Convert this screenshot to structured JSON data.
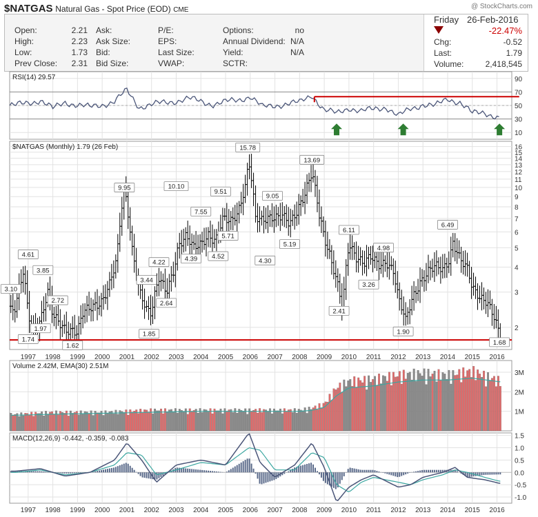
{
  "header": {
    "symbol": "$NATGAS",
    "name": "Natural Gas - Spot Price (EOD)",
    "exchange": "CME",
    "watermark": "@ StockCharts.com"
  },
  "quote": {
    "labels1": [
      "Open:",
      "High:",
      "Low:",
      "Prev Close:"
    ],
    "values1": [
      "2.21",
      "2.23",
      "1.73",
      "2.31"
    ],
    "labels2": [
      "Ask:",
      "Ask Size:",
      "Bid:",
      "Bid Size:"
    ],
    "labels3": [
      "P/E:",
      "EPS:",
      "Last Size:",
      "VWAP:"
    ],
    "labels4": [
      "Options:",
      "Annual Dividend:",
      "Yield:",
      "SCTR:"
    ],
    "values4": [
      "no",
      "N/A",
      "N/A",
      ""
    ],
    "day": "Friday",
    "date": "26-Feb-2016",
    "pct_change": "-22.47%",
    "labels5": [
      "Chg:",
      "Last:",
      "Volume:"
    ],
    "values5": [
      "-0.52",
      "1.79",
      "2,418,545"
    ]
  },
  "colors": {
    "price_line": "#000000",
    "indicator_line": "#4a5578",
    "support_line": "#cc0000",
    "arrow": "#2e7d32",
    "vol_up": "#8a8a8a",
    "vol_down": "#e06b6b",
    "ema": "#3aa6a0",
    "down_triangle": "#8b0000",
    "pct_down": "#cc0000"
  },
  "chart_data": [
    {
      "type": "line",
      "panel": "RSI",
      "title": "RSI(14) 29.57",
      "y_ticks": [
        10,
        30,
        50,
        70,
        90
      ],
      "ylim": [
        0,
        100
      ],
      "overbought": 70,
      "oversold": 30,
      "x_years": [
        1996.5,
        1997.5,
        1998.0,
        1998.5,
        1999.5,
        2000.5,
        2001.0,
        2001.5,
        2002.5,
        2003.5,
        2004.5,
        2005.5,
        2006.0,
        2006.5,
        2007.5,
        2008.0,
        2008.5,
        2009.0,
        2009.5,
        2010.0,
        2010.5,
        2011.5,
        2012.0,
        2012.5,
        2013.0,
        2013.5,
        2014.0,
        2014.5,
        2015.0,
        2015.5,
        2016.0,
        2016.15
      ],
      "values": [
        50,
        58,
        45,
        55,
        47,
        56,
        72,
        48,
        54,
        60,
        52,
        58,
        64,
        47,
        53,
        54,
        66,
        43,
        38,
        47,
        41,
        48,
        34,
        45,
        52,
        49,
        60,
        55,
        38,
        40,
        33,
        29.57
      ],
      "resistance": {
        "x_start": 2008.6,
        "x_end": 2016.9,
        "value": 63
      },
      "arrows_x": [
        2009.5,
        2012.2,
        2016.1
      ]
    },
    {
      "type": "ohlc",
      "panel": "Price",
      "title": "$NATGAS (Monthly) 1.79 (26 Feb)",
      "y_scale": "log",
      "y_ticks": [
        2,
        3,
        4,
        5,
        6,
        7,
        8,
        9,
        10,
        11,
        12,
        13,
        14,
        15,
        16
      ],
      "ylim": [
        1.55,
        17
      ],
      "xlim": [
        1996.25,
        2016.6
      ],
      "x_ticks": [
        "1997",
        "1998",
        "1999",
        "2000",
        "2001",
        "2002",
        "2003",
        "2004",
        "2005",
        "2006",
        "2007",
        "2008",
        "2009",
        "2010",
        "2011",
        "2012",
        "2013",
        "2014",
        "2015",
        "2016"
      ],
      "support": 1.73,
      "x_years": [
        1996.5,
        1996.8,
        1997.0,
        1997.2,
        1997.5,
        1997.8,
        1998.0,
        1998.2,
        1998.5,
        1998.8,
        1999.0,
        1999.2,
        1999.5,
        1999.8,
        2000.0,
        2000.3,
        2000.6,
        2000.9,
        2001.0,
        2001.2,
        2001.5,
        2001.8,
        2002.0,
        2002.3,
        2002.6,
        2002.9,
        2003.1,
        2003.4,
        2003.7,
        2004.0,
        2004.3,
        2004.6,
        2004.9,
        2005.2,
        2005.5,
        2005.8,
        2005.95,
        2006.2,
        2006.5,
        2006.8,
        2007.0,
        2007.3,
        2007.6,
        2007.9,
        2008.2,
        2008.5,
        2008.8,
        2009.0,
        2009.3,
        2009.6,
        2009.75,
        2010.0,
        2010.3,
        2010.6,
        2010.9,
        2011.2,
        2011.5,
        2011.8,
        2012.0,
        2012.3,
        2012.6,
        2012.9,
        2013.2,
        2013.5,
        2013.8,
        2014.1,
        2014.2,
        2014.5,
        2014.8,
        2015.0,
        2015.3,
        2015.6,
        2015.9,
        2016.1
      ],
      "close": [
        2.4,
        3.7,
        2.4,
        2.0,
        2.2,
        2.9,
        2.2,
        2.1,
        2.0,
        2.0,
        1.9,
        2.3,
        2.4,
        2.6,
        2.8,
        3.4,
        4.3,
        9.5,
        8.0,
        5.0,
        3.2,
        2.5,
        2.3,
        3.4,
        3.0,
        4.0,
        5.3,
        5.6,
        4.8,
        5.2,
        6.0,
        5.5,
        6.8,
        6.5,
        7.5,
        10.5,
        14.0,
        7.0,
        6.5,
        7.0,
        7.3,
        7.6,
        6.5,
        7.2,
        9.0,
        12.5,
        7.5,
        5.5,
        4.0,
        3.0,
        2.5,
        5.5,
        4.5,
        4.0,
        4.4,
        4.2,
        4.4,
        3.8,
        2.7,
        2.1,
        2.9,
        3.5,
        3.8,
        3.9,
        3.8,
        4.5,
        5.6,
        4.5,
        3.8,
        3.0,
        2.8,
        2.8,
        2.3,
        1.79
      ],
      "labels": [
        {
          "text": "3.10",
          "x": 1996.3,
          "y": 3.1
        },
        {
          "text": "4.61",
          "x": 1997.0,
          "y": 4.61
        },
        {
          "text": "1.74",
          "x": 1997.0,
          "y": 1.74
        },
        {
          "text": "3.85",
          "x": 1997.6,
          "y": 3.85
        },
        {
          "text": "1.97",
          "x": 1997.5,
          "y": 1.97
        },
        {
          "text": "2.72",
          "x": 1998.2,
          "y": 2.72
        },
        {
          "text": "1.62",
          "x": 1998.8,
          "y": 1.62
        },
        {
          "text": "9.95",
          "x": 2000.9,
          "y": 9.95
        },
        {
          "text": "3.44",
          "x": 2001.8,
          "y": 3.44
        },
        {
          "text": "1.85",
          "x": 2001.9,
          "y": 1.85
        },
        {
          "text": "4.22",
          "x": 2002.3,
          "y": 4.22
        },
        {
          "text": "2.64",
          "x": 2002.6,
          "y": 2.64
        },
        {
          "text": "10.10",
          "x": 2003.0,
          "y": 10.1
        },
        {
          "text": "4.39",
          "x": 2003.6,
          "y": 4.39
        },
        {
          "text": "7.55",
          "x": 2004.0,
          "y": 7.55
        },
        {
          "text": "9.51",
          "x": 2004.8,
          "y": 9.51
        },
        {
          "text": "4.52",
          "x": 2004.7,
          "y": 4.52
        },
        {
          "text": "5.71",
          "x": 2005.1,
          "y": 5.71
        },
        {
          "text": "15.78",
          "x": 2005.9,
          "y": 15.78
        },
        {
          "text": "9.05",
          "x": 2006.9,
          "y": 9.05
        },
        {
          "text": "4.30",
          "x": 2006.6,
          "y": 4.3
        },
        {
          "text": "5.19",
          "x": 2007.6,
          "y": 5.19
        },
        {
          "text": "13.69",
          "x": 2008.5,
          "y": 13.69
        },
        {
          "text": "2.41",
          "x": 2009.6,
          "y": 2.41
        },
        {
          "text": "6.11",
          "x": 2010.0,
          "y": 6.11
        },
        {
          "text": "3.26",
          "x": 2010.8,
          "y": 3.26
        },
        {
          "text": "4.98",
          "x": 2011.4,
          "y": 4.98
        },
        {
          "text": "1.90",
          "x": 2012.2,
          "y": 1.9
        },
        {
          "text": "6.49",
          "x": 2014.0,
          "y": 6.49
        },
        {
          "text": "1.68",
          "x": 2016.1,
          "y": 1.68
        }
      ]
    },
    {
      "type": "bar",
      "panel": "Volume",
      "title": "Volume 2.42M, EMA(30) 2.51M",
      "y_ticks": [
        "1M",
        "2M",
        "3M"
      ],
      "ylim": [
        0,
        3.6
      ],
      "x_years": [
        1996.5,
        1998.0,
        2000.0,
        2002.0,
        2004.0,
        2006.0,
        2008.0,
        2008.5,
        2009.0,
        2009.5,
        2010.0,
        2011.0,
        2012.0,
        2013.0,
        2014.0,
        2015.0,
        2016.1
      ],
      "values": [
        0.8,
        0.9,
        0.9,
        1.0,
        1.0,
        1.0,
        1.0,
        1.1,
        1.3,
        2.1,
        2.4,
        2.5,
        2.7,
        2.8,
        2.7,
        2.9,
        2.42
      ],
      "ema_values": [
        0.8,
        0.85,
        0.9,
        0.95,
        1.0,
        1.0,
        1.0,
        1.05,
        1.2,
        1.8,
        2.2,
        2.3,
        2.5,
        2.6,
        2.6,
        2.7,
        2.51
      ]
    },
    {
      "type": "line",
      "panel": "MACD",
      "title": "MACD(12,26,9) -0.442, -0.359, -0.083",
      "y_ticks": [
        -1.0,
        -0.5,
        0.0,
        0.5,
        1.0,
        1.5
      ],
      "ylim": [
        -1.25,
        1.6
      ],
      "x_years": [
        1996.5,
        1997.5,
        1998.5,
        1999.5,
        2000.5,
        2001.0,
        2001.6,
        2002.2,
        2003.0,
        2004.0,
        2005.0,
        2005.95,
        2006.4,
        2007.0,
        2007.8,
        2008.5,
        2009.0,
        2009.5,
        2010.0,
        2010.5,
        2011.0,
        2012.0,
        2012.5,
        2013.0,
        2013.8,
        2014.3,
        2014.8,
        2015.5,
        2016.1
      ],
      "macd": [
        0.05,
        0.15,
        -0.15,
        0.0,
        0.5,
        1.2,
        0.5,
        -0.4,
        0.3,
        0.5,
        0.3,
        1.6,
        0.4,
        -0.2,
        0.3,
        1.2,
        0.2,
        -1.2,
        -0.6,
        -0.3,
        -0.1,
        -0.6,
        -0.5,
        -0.2,
        0.0,
        0.2,
        -0.2,
        -0.3,
        -0.442
      ],
      "signal": [
        0.0,
        0.1,
        -0.1,
        0.0,
        0.3,
        0.8,
        0.7,
        -0.1,
        0.1,
        0.4,
        0.3,
        1.0,
        0.9,
        0.1,
        0.1,
        0.8,
        0.6,
        -0.5,
        -0.8,
        -0.4,
        -0.2,
        -0.4,
        -0.5,
        -0.3,
        -0.1,
        0.1,
        0.0,
        -0.2,
        -0.359
      ]
    }
  ]
}
